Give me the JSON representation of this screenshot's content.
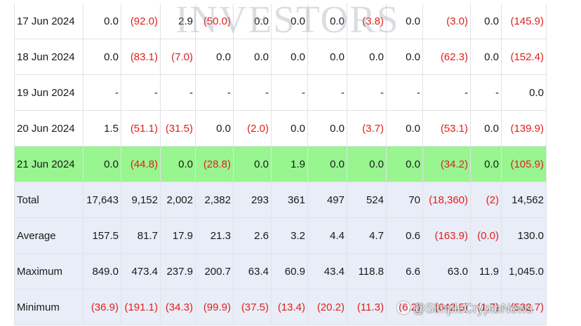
{
  "watermarks": {
    "top": "INVESTORS",
    "bottom": "@SimpleCryptoNews"
  },
  "colors": {
    "negative": "#e0201b",
    "highlight_row": "#98f590",
    "summary_row": "#e8edf7"
  },
  "rows": [
    {
      "label": "17 Jun 2024",
      "cells": [
        "0.0",
        "(92.0)",
        "2.9",
        "(50.0)",
        "0.0",
        "0.0",
        "0.0",
        "(3.8)",
        "0.0",
        "(3.0)",
        "0.0",
        "(145.9)"
      ]
    },
    {
      "label": "18 Jun 2024",
      "cells": [
        "0.0",
        "(83.1)",
        "(7.0)",
        "0.0",
        "0.0",
        "0.0",
        "0.0",
        "0.0",
        "0.0",
        "(62.3)",
        "0.0",
        "(152.4)"
      ]
    },
    {
      "label": "19 Jun 2024",
      "cells": [
        "-",
        "-",
        "-",
        "-",
        "-",
        "-",
        "-",
        "-",
        "-",
        "-",
        "-",
        "0.0"
      ]
    },
    {
      "label": "20 Jun 2024",
      "cells": [
        "1.5",
        "(51.1)",
        "(31.5)",
        "0.0",
        "(2.0)",
        "0.0",
        "0.0",
        "(3.7)",
        "0.0",
        "(53.1)",
        "0.0",
        "(139.9)"
      ]
    },
    {
      "label": "21 Jun 2024",
      "cells": [
        "0.0",
        "(44.8)",
        "0.0",
        "(28.8)",
        "0.0",
        "1.9",
        "0.0",
        "0.0",
        "0.0",
        "(34.2)",
        "0.0",
        "(105.9)"
      ]
    },
    {
      "label": "Total",
      "cells": [
        "17,643",
        "9,152",
        "2,002",
        "2,382",
        "293",
        "361",
        "497",
        "524",
        "70",
        "(18,360)",
        "(2)",
        "14,562"
      ]
    },
    {
      "label": "Average",
      "cells": [
        "157.5",
        "81.7",
        "17.9",
        "21.3",
        "2.6",
        "3.2",
        "4.4",
        "4.7",
        "0.6",
        "(163.9)",
        "(0.0)",
        "130.0"
      ]
    },
    {
      "label": "Maximum",
      "cells": [
        "849.0",
        "473.4",
        "237.9",
        "200.7",
        "63.4",
        "60.9",
        "43.4",
        "118.8",
        "6.6",
        "63.0",
        "11.9",
        "1,045.0"
      ]
    },
    {
      "label": "Minimum",
      "cells": [
        "(36.9)",
        "(191.1)",
        "(34.3)",
        "(99.9)",
        "(37.5)",
        "(13.4)",
        "(20.2)",
        "(11.3)",
        "(6.2)",
        "(642.5)",
        "(1.7)",
        "(532.7)"
      ]
    }
  ]
}
